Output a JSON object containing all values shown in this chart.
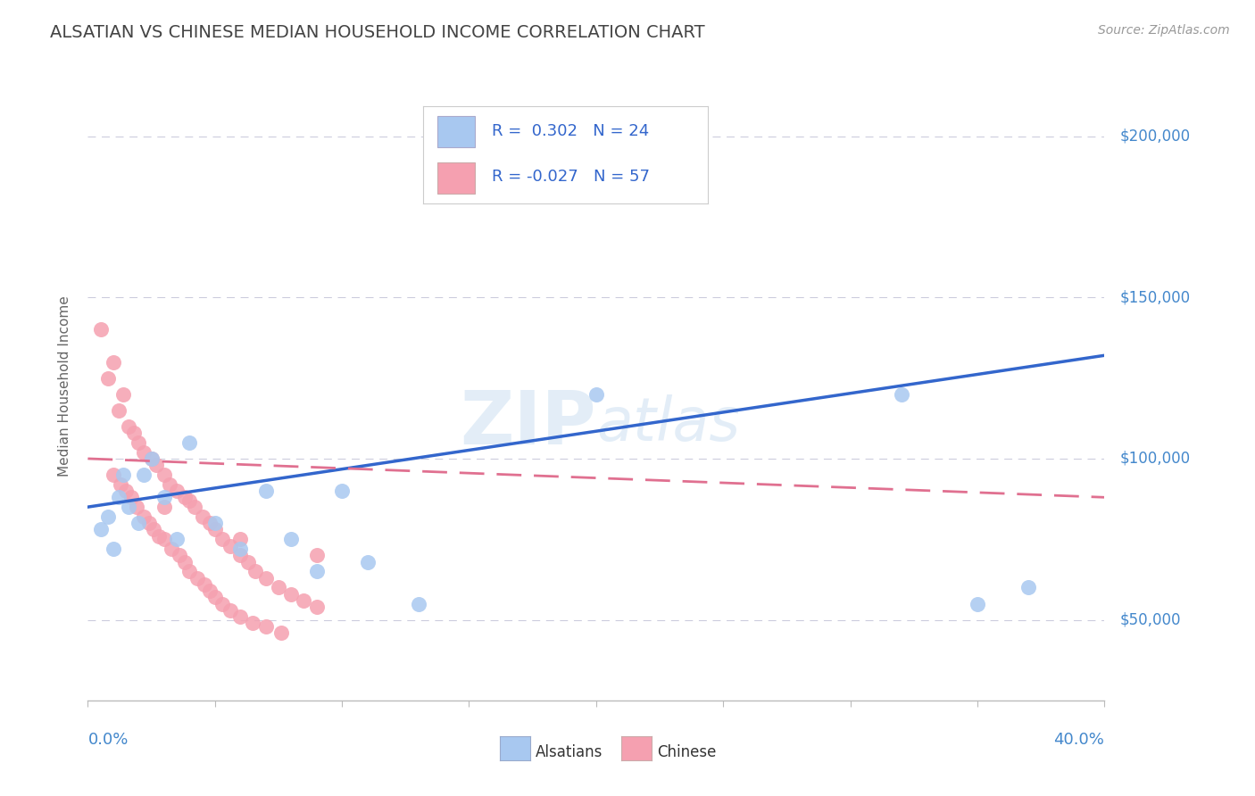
{
  "title": "ALSATIAN VS CHINESE MEDIAN HOUSEHOLD INCOME CORRELATION CHART",
  "source_text": "Source: ZipAtlas.com",
  "watermark": "ZIPAtlas",
  "ylabel": "Median Household Income",
  "ytick_labels": [
    "$50,000",
    "$100,000",
    "$150,000",
    "$200,000"
  ],
  "ytick_values": [
    50000,
    100000,
    150000,
    200000
  ],
  "xlim": [
    0.0,
    0.4
  ],
  "ylim": [
    25000,
    220000
  ],
  "alsatian_color": "#a8c8f0",
  "chinese_color": "#f5a0b0",
  "alsatian_line_color": "#3366cc",
  "chinese_line_color": "#e07090",
  "background_color": "#ffffff",
  "alsatian_label": "Alsatians",
  "chinese_label": "Chinese",
  "alsatian_R": 0.302,
  "alsatian_N": 24,
  "chinese_R": -0.027,
  "chinese_N": 57,
  "als_line_y0": 85000,
  "als_line_y1": 132000,
  "chi_line_y0": 100000,
  "chi_line_y1": 88000,
  "alsatian_x": [
    0.005,
    0.008,
    0.01,
    0.012,
    0.014,
    0.016,
    0.02,
    0.022,
    0.025,
    0.03,
    0.035,
    0.04,
    0.05,
    0.06,
    0.07,
    0.08,
    0.09,
    0.1,
    0.11,
    0.13,
    0.2,
    0.32,
    0.35,
    0.37
  ],
  "alsatian_y": [
    78000,
    82000,
    72000,
    88000,
    95000,
    85000,
    80000,
    95000,
    100000,
    88000,
    75000,
    105000,
    80000,
    72000,
    90000,
    75000,
    65000,
    90000,
    68000,
    55000,
    120000,
    120000,
    55000,
    60000
  ],
  "chinese_x": [
    0.005,
    0.008,
    0.01,
    0.012,
    0.014,
    0.016,
    0.018,
    0.02,
    0.022,
    0.025,
    0.027,
    0.03,
    0.032,
    0.035,
    0.038,
    0.04,
    0.042,
    0.045,
    0.048,
    0.05,
    0.053,
    0.056,
    0.06,
    0.063,
    0.066,
    0.07,
    0.075,
    0.08,
    0.085,
    0.09,
    0.01,
    0.013,
    0.015,
    0.017,
    0.019,
    0.022,
    0.024,
    0.026,
    0.028,
    0.03,
    0.033,
    0.036,
    0.038,
    0.04,
    0.043,
    0.046,
    0.048,
    0.05,
    0.053,
    0.056,
    0.06,
    0.065,
    0.07,
    0.076,
    0.03,
    0.06,
    0.09
  ],
  "chinese_y": [
    140000,
    125000,
    130000,
    115000,
    120000,
    110000,
    108000,
    105000,
    102000,
    100000,
    98000,
    95000,
    92000,
    90000,
    88000,
    87000,
    85000,
    82000,
    80000,
    78000,
    75000,
    73000,
    70000,
    68000,
    65000,
    63000,
    60000,
    58000,
    56000,
    54000,
    95000,
    92000,
    90000,
    88000,
    85000,
    82000,
    80000,
    78000,
    76000,
    75000,
    72000,
    70000,
    68000,
    65000,
    63000,
    61000,
    59000,
    57000,
    55000,
    53000,
    51000,
    49000,
    48000,
    46000,
    85000,
    75000,
    70000
  ]
}
